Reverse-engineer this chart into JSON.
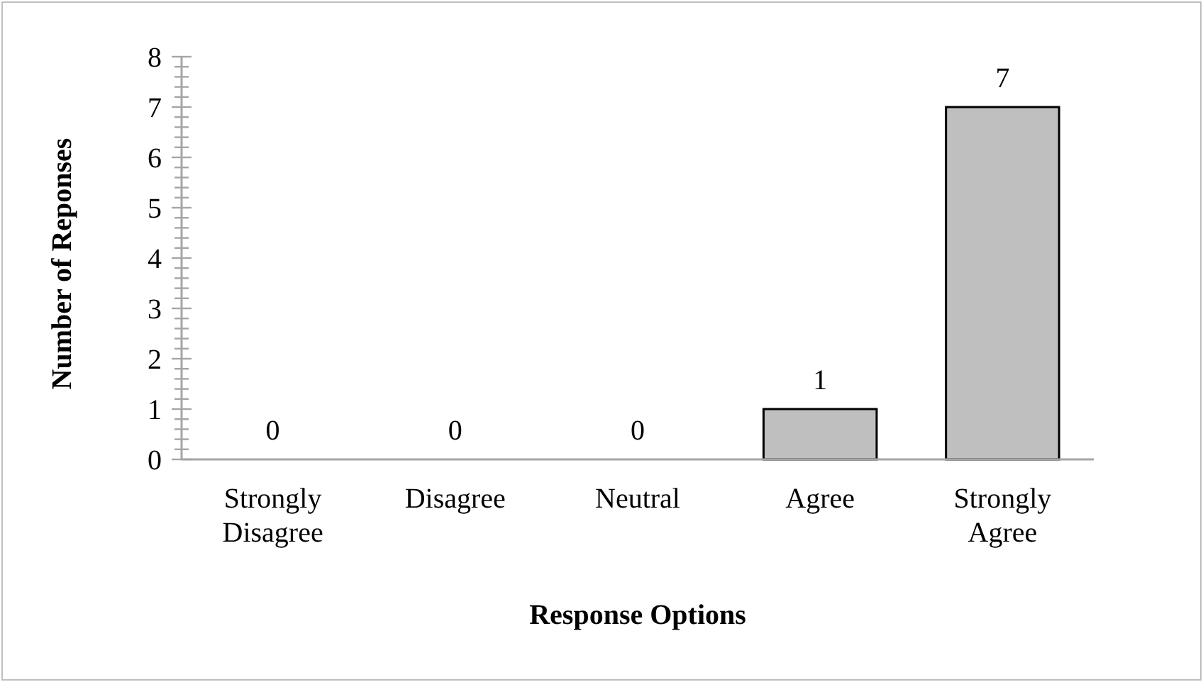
{
  "chart_data": {
    "type": "bar",
    "xlabel": "Response Options",
    "ylabel": "Number of Reponses",
    "categories": [
      "Strongly Disagree",
      "Disagree",
      "Neutral",
      "Agree",
      "Strongly Agree"
    ],
    "values": [
      0,
      0,
      0,
      1,
      7
    ],
    "color": "#bfbfbf",
    "data_labels": true,
    "grid": false,
    "ylim": [
      0,
      8
    ],
    "yticks": [
      0,
      {
        "value": 0.2,
        "label": null
      },
      {
        "value": 0.4,
        "label": null
      },
      {
        "value": 0.6,
        "label": null
      },
      {
        "value": 0.8,
        "label": null
      },
      1,
      {
        "value": 1.2,
        "label": null
      },
      {
        "value": 1.4,
        "label": null
      },
      {
        "value": 1.6,
        "label": null
      },
      {
        "value": 1.8,
        "label": null
      },
      2,
      {
        "value": 2.2,
        "label": null
      },
      {
        "value": 2.4,
        "label": null
      },
      {
        "value": 2.6,
        "label": null
      },
      {
        "value": 2.8,
        "label": null
      },
      3,
      {
        "value": 3.2,
        "label": null
      },
      {
        "value": 3.4,
        "label": null
      },
      {
        "value": 3.6,
        "label": null
      },
      {
        "value": 3.8,
        "label": null
      },
      4,
      {
        "value": 4.2,
        "label": null
      },
      {
        "value": 4.4,
        "label": null
      },
      {
        "value": 4.6,
        "label": null
      },
      {
        "value": 4.8,
        "label": null
      },
      5,
      {
        "value": 5.2,
        "label": null
      },
      {
        "value": 5.4,
        "label": null
      },
      {
        "value": 5.6,
        "label": null
      },
      {
        "value": 5.8,
        "label": null
      },
      6,
      {
        "value": 6.2,
        "label": null
      },
      {
        "value": 6.4,
        "label": null
      },
      {
        "value": 6.6,
        "label": null
      },
      {
        "value": 6.8,
        "label": null
      },
      7,
      {
        "value": 7.2,
        "label": null
      },
      {
        "value": 7.4,
        "label": null
      },
      {
        "value": 7.6,
        "label": null
      },
      {
        "value": 7.8,
        "label": null
      },
      8
    ]
  }
}
